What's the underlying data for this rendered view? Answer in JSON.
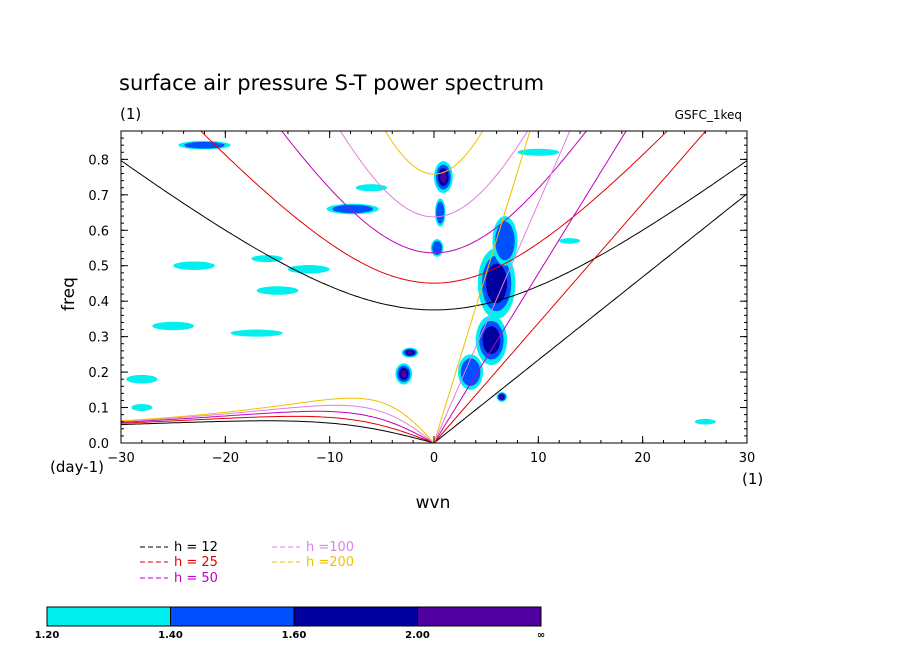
{
  "chart_data": {
    "type": "heatmap",
    "title": "surface air pressure S-T power spectrum",
    "subtitle": "(1)",
    "tag": "GSFC_1keq",
    "xlabel": "wvn",
    "ylabel": "freq",
    "x_unit_label": "(1)",
    "y_unit_label": "(day-1)",
    "xlim": [
      -30,
      30
    ],
    "ylim": [
      0,
      0.88
    ],
    "x_ticks": [
      -30,
      -20,
      -10,
      0,
      10,
      20,
      30
    ],
    "x_tick_labels": [
      "−30",
      "−20",
      "−10",
      "0",
      "10",
      "20",
      "30"
    ],
    "y_ticks": [
      0,
      0.1,
      0.2,
      0.3,
      0.4,
      0.5,
      0.6,
      0.7,
      0.8
    ],
    "y_tick_labels": [
      "0.0",
      "0.1",
      "0.2",
      "0.3",
      "0.4",
      "0.5",
      "0.6",
      "0.7",
      "0.8"
    ],
    "dispersion_curves": [
      {
        "label": "h = 12",
        "h": 12,
        "color": "#000000"
      },
      {
        "label": "h = 25",
        "h": 25,
        "color": "#e00000"
      },
      {
        "label": "h = 50",
        "h": 50,
        "color": "#c000c0"
      },
      {
        "label": "h =100",
        "h": 100,
        "color": "#e080e0"
      },
      {
        "label": "h =200",
        "h": 200,
        "color": "#f0c000"
      }
    ],
    "colorbar": {
      "levels": [
        "1.20",
        "1.40",
        "1.60",
        "2.00",
        "∞"
      ],
      "colors": [
        "#00f0f0",
        "#0050ff",
        "#0000a0",
        "#5000a0"
      ]
    },
    "contour_regions": [
      {
        "x": 0.9,
        "y": 0.75,
        "rx": 0.9,
        "ry": 0.045,
        "level": 3
      },
      {
        "x": 0.6,
        "y": 0.65,
        "rx": 0.5,
        "ry": 0.04,
        "level": 1
      },
      {
        "x": 0.3,
        "y": 0.55,
        "rx": 0.6,
        "ry": 0.025,
        "level": 1
      },
      {
        "x": -2.3,
        "y": 0.255,
        "rx": 0.8,
        "ry": 0.014,
        "level": 3
      },
      {
        "x": -2.9,
        "y": 0.195,
        "rx": 0.8,
        "ry": 0.03,
        "level": 3
      },
      {
        "x": 6.5,
        "y": 0.13,
        "rx": 0.5,
        "ry": 0.014,
        "level": 3
      },
      {
        "x": 5.5,
        "y": 0.29,
        "rx": 1.5,
        "ry": 0.07,
        "level": 2
      },
      {
        "x": 6.0,
        "y": 0.45,
        "rx": 1.8,
        "ry": 0.1,
        "level": 2
      },
      {
        "x": 6.8,
        "y": 0.57,
        "rx": 1.2,
        "ry": 0.07,
        "level": 1
      },
      {
        "x": 3.5,
        "y": 0.2,
        "rx": 1.2,
        "ry": 0.05,
        "level": 1
      },
      {
        "x": -7.8,
        "y": 0.66,
        "rx": 2.5,
        "ry": 0.015,
        "level": 1
      },
      {
        "x": -22,
        "y": 0.84,
        "rx": 2.5,
        "ry": 0.012,
        "level": 1
      },
      {
        "x": -25,
        "y": 0.33,
        "rx": 2.0,
        "ry": 0.012,
        "level": 0
      },
      {
        "x": -17,
        "y": 0.31,
        "rx": 2.5,
        "ry": 0.01,
        "level": 0
      },
      {
        "x": -23,
        "y": 0.5,
        "rx": 2.0,
        "ry": 0.012,
        "level": 0
      },
      {
        "x": -12,
        "y": 0.49,
        "rx": 2.0,
        "ry": 0.012,
        "level": 0
      },
      {
        "x": -15,
        "y": 0.43,
        "rx": 2.0,
        "ry": 0.012,
        "level": 0
      },
      {
        "x": -28,
        "y": 0.18,
        "rx": 1.5,
        "ry": 0.012,
        "level": 0
      },
      {
        "x": -28,
        "y": 0.1,
        "rx": 1.0,
        "ry": 0.01,
        "level": 0
      },
      {
        "x": -6,
        "y": 0.72,
        "rx": 1.5,
        "ry": 0.01,
        "level": 0
      },
      {
        "x": -16,
        "y": 0.52,
        "rx": 1.5,
        "ry": 0.01,
        "level": 0
      },
      {
        "x": 10,
        "y": 0.82,
        "rx": 2.0,
        "ry": 0.01,
        "level": 0
      },
      {
        "x": 13,
        "y": 0.57,
        "rx": 1.0,
        "ry": 0.008,
        "level": 0
      },
      {
        "x": 26,
        "y": 0.06,
        "rx": 1.0,
        "ry": 0.008,
        "level": 0
      }
    ]
  }
}
